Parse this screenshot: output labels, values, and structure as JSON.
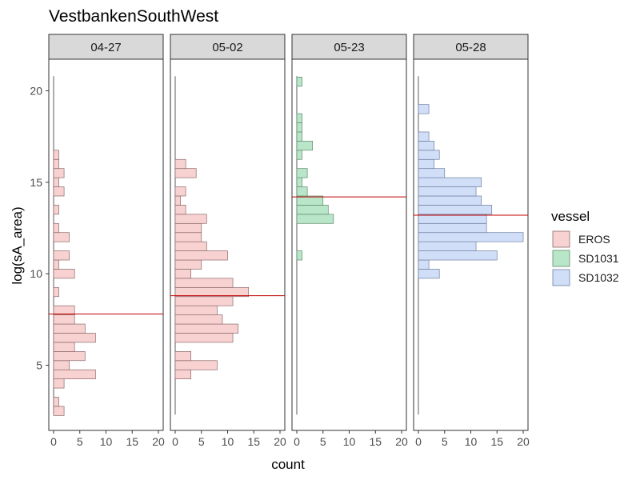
{
  "chart_data": {
    "type": "bar",
    "orientation": "horizontal-histogram",
    "title": "VestbankenSouthWest",
    "xlabel": "count",
    "ylabel": "log(sA_area)",
    "xlim": [
      0,
      20
    ],
    "ylim": [
      2,
      21.5
    ],
    "xticks": [
      0,
      5,
      10,
      15,
      20
    ],
    "yticks": [
      5,
      10,
      15,
      20
    ],
    "bin_width": 0.5,
    "legend": {
      "title": "vessel",
      "position": "right",
      "entries": [
        {
          "name": "EROS",
          "color": "#f8d1d1"
        },
        {
          "name": "SD1031",
          "color": "#b9e6c9"
        },
        {
          "name": "SD1032",
          "color": "#d0def8"
        }
      ]
    },
    "panels": [
      {
        "label": "04-27",
        "vessel": "EROS",
        "mean_line": 7.8,
        "bins": [
          {
            "y": 2.5,
            "count": 2
          },
          {
            "y": 3.0,
            "count": 1
          },
          {
            "y": 4.0,
            "count": 2
          },
          {
            "y": 4.5,
            "count": 8
          },
          {
            "y": 5.0,
            "count": 3
          },
          {
            "y": 5.5,
            "count": 6
          },
          {
            "y": 6.0,
            "count": 4
          },
          {
            "y": 6.5,
            "count": 8
          },
          {
            "y": 7.0,
            "count": 6
          },
          {
            "y": 7.5,
            "count": 4
          },
          {
            "y": 8.0,
            "count": 4
          },
          {
            "y": 9.0,
            "count": 1
          },
          {
            "y": 10.0,
            "count": 4
          },
          {
            "y": 10.5,
            "count": 1
          },
          {
            "y": 11.0,
            "count": 3
          },
          {
            "y": 12.0,
            "count": 3
          },
          {
            "y": 12.5,
            "count": 1
          },
          {
            "y": 13.5,
            "count": 1
          },
          {
            "y": 14.5,
            "count": 2
          },
          {
            "y": 15.0,
            "count": 1
          },
          {
            "y": 15.5,
            "count": 2
          },
          {
            "y": 16.0,
            "count": 1
          },
          {
            "y": 16.5,
            "count": 1
          }
        ]
      },
      {
        "label": "05-02",
        "vessel": "EROS",
        "mean_line": 8.8,
        "bins": [
          {
            "y": 4.5,
            "count": 3
          },
          {
            "y": 5.0,
            "count": 8
          },
          {
            "y": 5.5,
            "count": 3
          },
          {
            "y": 6.5,
            "count": 11
          },
          {
            "y": 7.0,
            "count": 12
          },
          {
            "y": 7.5,
            "count": 9
          },
          {
            "y": 8.0,
            "count": 8
          },
          {
            "y": 8.5,
            "count": 11
          },
          {
            "y": 9.0,
            "count": 14
          },
          {
            "y": 9.5,
            "count": 11
          },
          {
            "y": 10.0,
            "count": 3
          },
          {
            "y": 10.5,
            "count": 5
          },
          {
            "y": 11.0,
            "count": 10
          },
          {
            "y": 11.5,
            "count": 6
          },
          {
            "y": 12.0,
            "count": 5
          },
          {
            "y": 12.5,
            "count": 5
          },
          {
            "y": 13.0,
            "count": 6
          },
          {
            "y": 13.5,
            "count": 2
          },
          {
            "y": 14.0,
            "count": 1
          },
          {
            "y": 14.5,
            "count": 2
          },
          {
            "y": 15.5,
            "count": 4
          },
          {
            "y": 16.0,
            "count": 2
          }
        ]
      },
      {
        "label": "05-23",
        "vessel": "SD1031",
        "mean_line": 14.2,
        "bins": [
          {
            "y": 11.0,
            "count": 1
          },
          {
            "y": 13.0,
            "count": 7
          },
          {
            "y": 13.5,
            "count": 6
          },
          {
            "y": 14.0,
            "count": 5
          },
          {
            "y": 14.5,
            "count": 2
          },
          {
            "y": 15.0,
            "count": 1
          },
          {
            "y": 15.5,
            "count": 2
          },
          {
            "y": 16.5,
            "count": 1
          },
          {
            "y": 17.0,
            "count": 3
          },
          {
            "y": 17.5,
            "count": 1
          },
          {
            "y": 18.0,
            "count": 1
          },
          {
            "y": 18.5,
            "count": 1
          },
          {
            "y": 20.5,
            "count": 1
          }
        ]
      },
      {
        "label": "05-28",
        "vessel": "SD1032",
        "mean_line": 13.2,
        "bins": [
          {
            "y": 10.0,
            "count": 4
          },
          {
            "y": 10.5,
            "count": 2
          },
          {
            "y": 11.0,
            "count": 15
          },
          {
            "y": 11.5,
            "count": 11
          },
          {
            "y": 12.0,
            "count": 20
          },
          {
            "y": 12.5,
            "count": 13
          },
          {
            "y": 13.0,
            "count": 13
          },
          {
            "y": 13.5,
            "count": 14
          },
          {
            "y": 14.0,
            "count": 12
          },
          {
            "y": 14.5,
            "count": 11
          },
          {
            "y": 15.0,
            "count": 12
          },
          {
            "y": 15.5,
            "count": 5
          },
          {
            "y": 16.0,
            "count": 3
          },
          {
            "y": 16.5,
            "count": 4
          },
          {
            "y": 17.0,
            "count": 3
          },
          {
            "y": 17.5,
            "count": 2
          },
          {
            "y": 19.0,
            "count": 2
          }
        ]
      }
    ]
  }
}
